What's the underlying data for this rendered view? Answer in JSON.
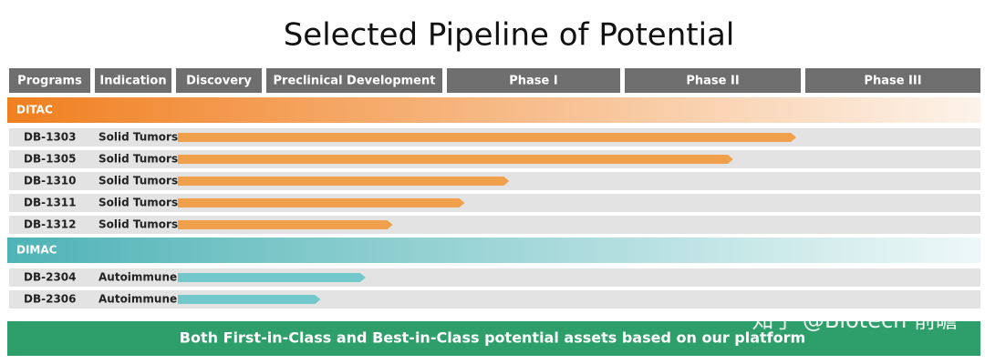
{
  "title": "Selected Pipeline of Potential",
  "headers": [
    "Programs",
    "Indication",
    "Discovery",
    "Preclinical Development",
    "Phase I",
    "Phase II",
    "Phase III"
  ],
  "groups": [
    {
      "name": "DITAC",
      "color": "#f0a04a",
      "band_color": "#f07f1f",
      "programs": [
        {
          "name": "DB-1303",
          "indication": "Solid Tumors",
          "progress": 3.95
        },
        {
          "name": "DB-1305",
          "indication": "Solid Tumors",
          "progress": 3.6
        },
        {
          "name": "DB-1310",
          "indication": "Solid Tumors",
          "progress": 2.35
        },
        {
          "name": "DB-1311",
          "indication": "Solid Tumors",
          "progress": 2.1
        },
        {
          "name": "DB-1312",
          "indication": "Solid Tumors",
          "progress": 1.7
        }
      ]
    },
    {
      "name": "DIMAC",
      "color": "#72c7ca",
      "band_color": "#4fb3b6",
      "programs": [
        {
          "name": "DB-2304",
          "indication": "Autoimmune",
          "progress": 1.55
        },
        {
          "name": "DB-2306",
          "indication": "Autoimmune",
          "progress": 1.3
        }
      ]
    }
  ],
  "footer": "Both First-in-Class and Best-in-Class potential assets based on our platform",
  "watermark": "知乎 @Biotech 前瞻"
}
